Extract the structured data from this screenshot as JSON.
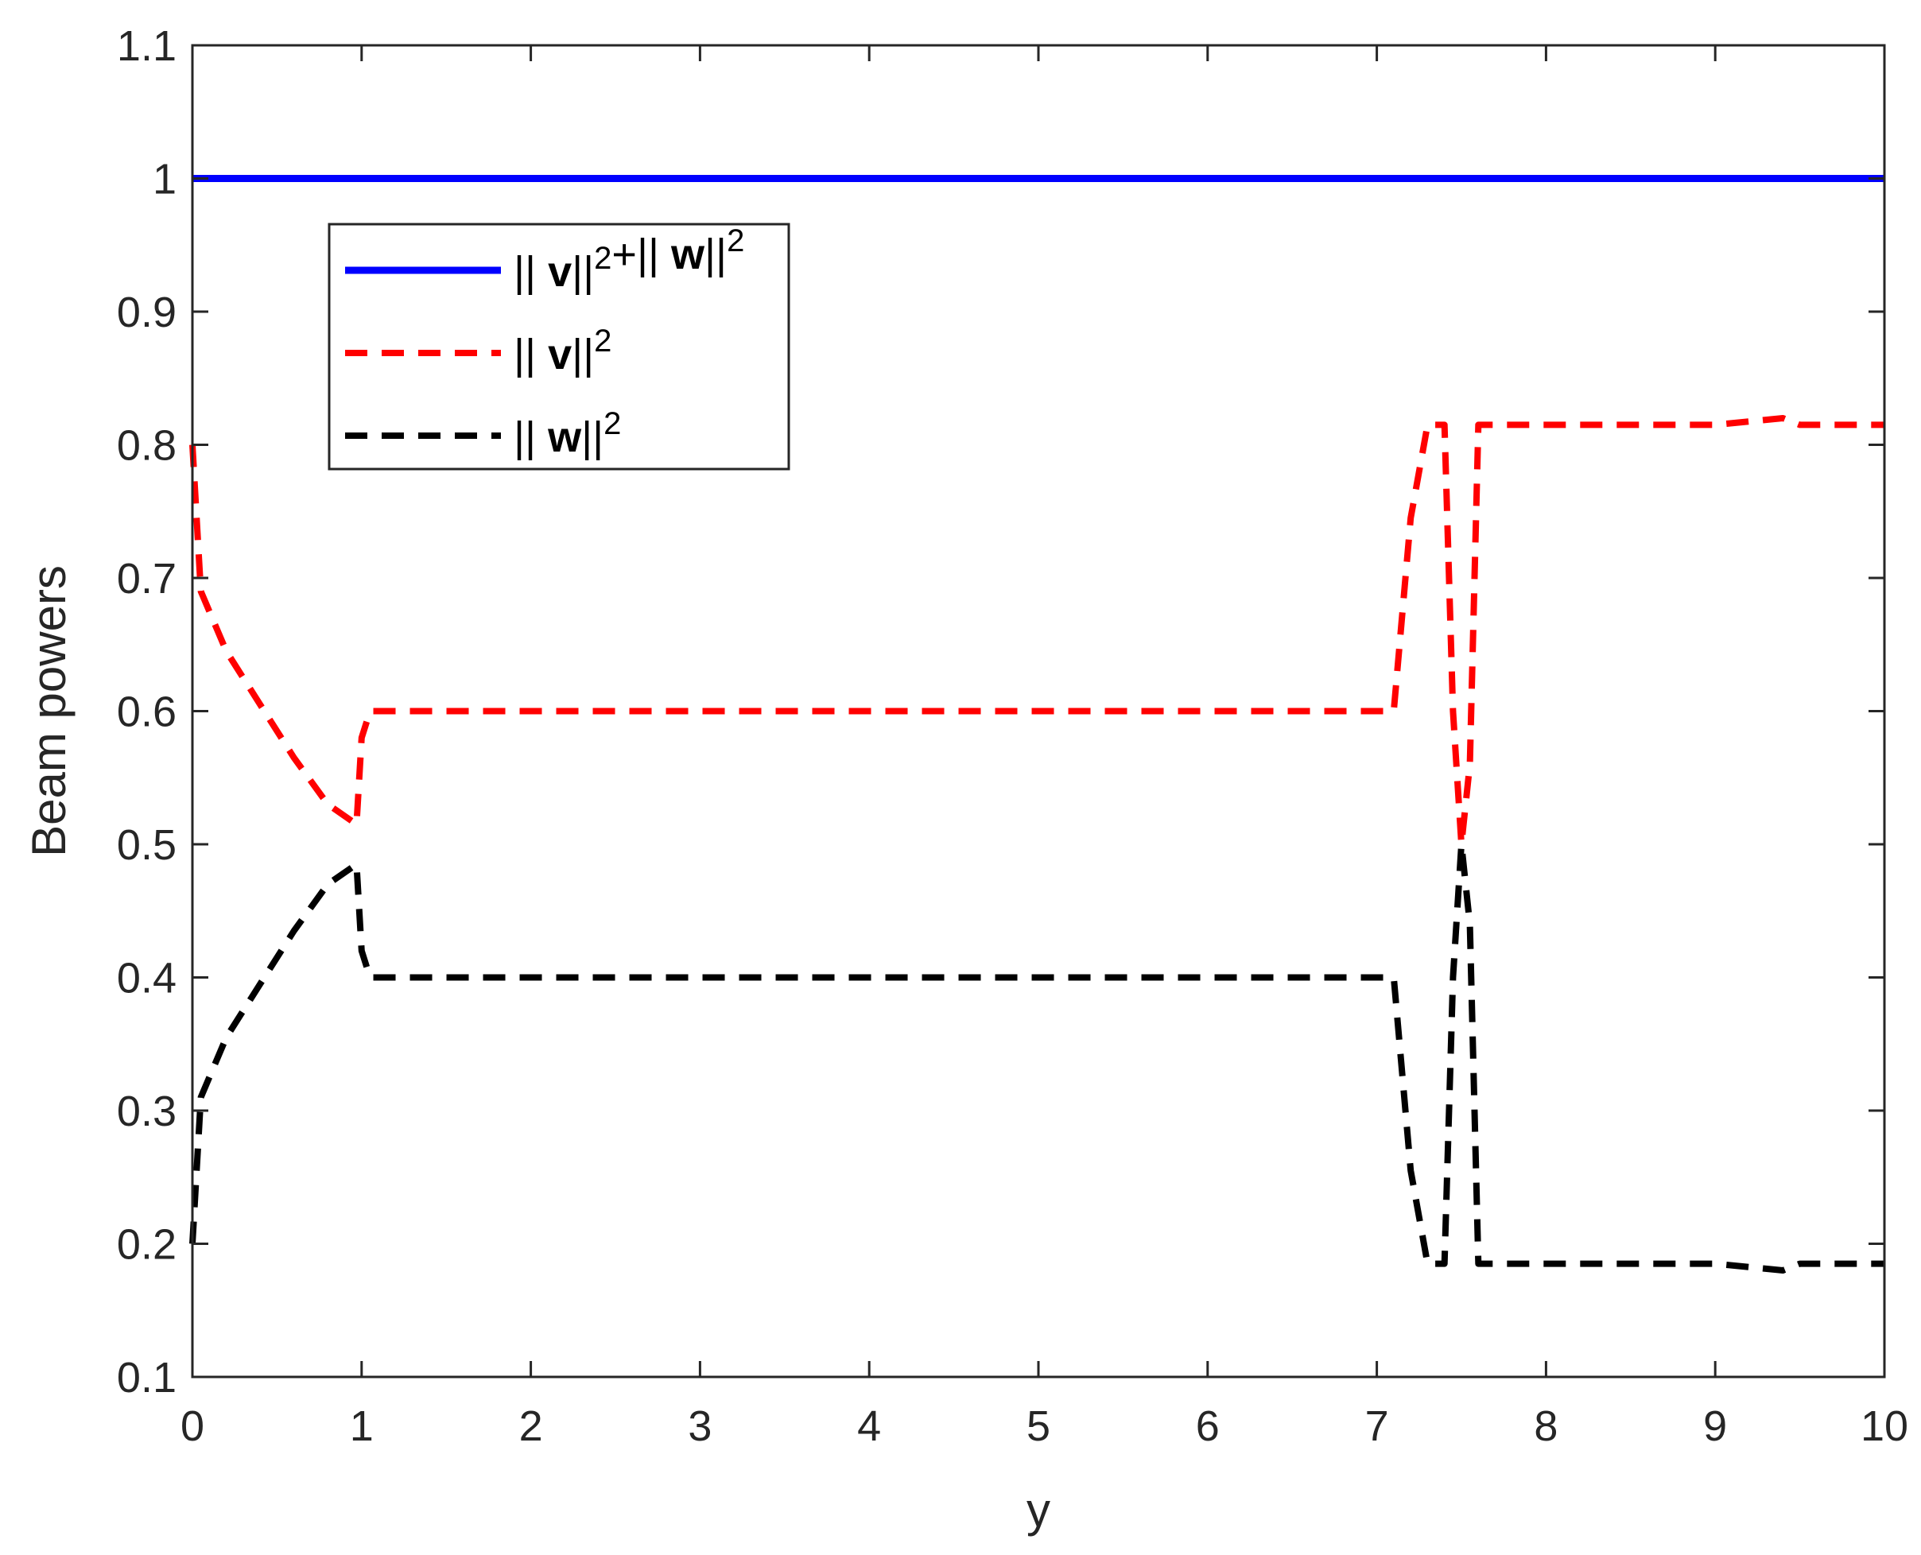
{
  "chart_data": {
    "type": "line",
    "xlabel": "y",
    "ylabel": "Beam powers",
    "xlim": [
      0,
      10
    ],
    "ylim": [
      0.1,
      1.1
    ],
    "xticks": [
      0,
      1,
      2,
      3,
      4,
      5,
      6,
      7,
      8,
      9,
      10
    ],
    "yticks": [
      0.1,
      0.2,
      0.3,
      0.4,
      0.5,
      0.6,
      0.7,
      0.8,
      0.9,
      1,
      1.1
    ],
    "xtick_labels": [
      "0",
      "1",
      "2",
      "3",
      "4",
      "5",
      "6",
      "7",
      "8",
      "9",
      "10"
    ],
    "ytick_labels": [
      "0.1",
      "0.2",
      "0.3",
      "0.4",
      "0.5",
      "0.6",
      "0.7",
      "0.8",
      "0.9",
      "1",
      "1.1"
    ],
    "legend_position": "upper-left",
    "grid": false,
    "series": [
      {
        "name": "|| v||²+|| w||²",
        "color": "#0000ff",
        "style": "solid",
        "x": [
          0,
          10
        ],
        "y": [
          1.0,
          1.0
        ]
      },
      {
        "name": "|| v||²",
        "color": "#ff0000",
        "style": "dashed",
        "x": [
          0,
          0.05,
          0.2,
          0.4,
          0.6,
          0.8,
          0.97,
          1.0,
          1.05,
          2,
          3,
          4,
          5,
          6,
          7,
          7.1,
          7.2,
          7.3,
          7.4,
          7.45,
          7.5,
          7.55,
          7.6,
          8,
          9,
          9.4,
          9.5,
          10
        ],
        "y": [
          0.8,
          0.69,
          0.645,
          0.605,
          0.565,
          0.53,
          0.515,
          0.58,
          0.6,
          0.6,
          0.6,
          0.6,
          0.6,
          0.6,
          0.6,
          0.6,
          0.745,
          0.815,
          0.815,
          0.6,
          0.5,
          0.56,
          0.815,
          0.815,
          0.815,
          0.82,
          0.815,
          0.815
        ]
      },
      {
        "name": "|| w||²",
        "color": "#000000",
        "style": "dashed",
        "x": [
          0,
          0.05,
          0.2,
          0.4,
          0.6,
          0.8,
          0.97,
          1.0,
          1.05,
          2,
          3,
          4,
          5,
          6,
          7,
          7.1,
          7.2,
          7.3,
          7.4,
          7.45,
          7.5,
          7.55,
          7.6,
          8,
          9,
          9.4,
          9.5,
          10
        ],
        "y": [
          0.2,
          0.31,
          0.355,
          0.395,
          0.435,
          0.47,
          0.485,
          0.42,
          0.4,
          0.4,
          0.4,
          0.4,
          0.4,
          0.4,
          0.4,
          0.4,
          0.255,
          0.185,
          0.185,
          0.4,
          0.5,
          0.44,
          0.185,
          0.185,
          0.185,
          0.18,
          0.185,
          0.185
        ]
      }
    ]
  }
}
